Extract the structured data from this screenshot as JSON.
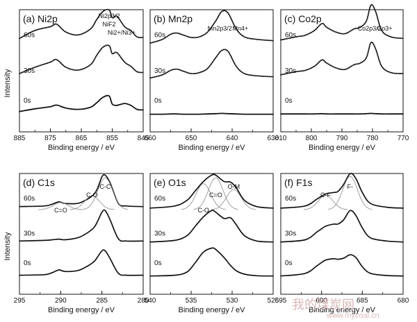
{
  "figure": {
    "ylabel": "Intensity",
    "watermark": {
      "cn": "我的煤炭网",
      "url": "www.mycoal.cn"
    }
  },
  "chart_data": [
    {
      "type": "line",
      "panel": "(a)",
      "title": "Ni2p",
      "xlabel": "Binding energy  /  eV",
      "xlim": [
        885,
        845
      ],
      "xticks": [
        885,
        875,
        865,
        855,
        845
      ],
      "x": [
        885,
        880,
        875,
        873,
        870,
        866,
        862,
        860,
        858,
        856,
        855,
        853.5,
        851,
        849,
        847,
        845
      ],
      "series": [
        {
          "name": "60s",
          "values": [
            0.25,
            0.5,
            0.62,
            0.7,
            0.45,
            0.36,
            0.55,
            0.85,
            1.1,
            1.15,
            0.9,
            0.95,
            0.62,
            0.5,
            0.3,
            0.28
          ]
        },
        {
          "name": "30s",
          "values": [
            0.22,
            0.42,
            0.58,
            0.66,
            0.42,
            0.33,
            0.5,
            0.8,
            1.05,
            1.1,
            0.85,
            0.88,
            0.58,
            0.45,
            0.28,
            0.25
          ]
        },
        {
          "name": "0s",
          "values": [
            0.12,
            0.22,
            0.3,
            0.36,
            0.25,
            0.2,
            0.28,
            0.45,
            0.65,
            0.7,
            0.4,
            0.35,
            0.42,
            0.35,
            0.2,
            0.18
          ]
        }
      ],
      "annotations": [
        {
          "text": "Ni2p3/2",
          "x": 856
        },
        {
          "text": "NiF2",
          "x": 856
        },
        {
          "text": "Ni2+/Ni3+",
          "x": 852
        }
      ]
    },
    {
      "type": "line",
      "panel": "(b)",
      "title": "Mn2p",
      "xlabel": "Binding energy  /  eV",
      "xlim": [
        660,
        630
      ],
      "xticks": [
        660,
        650,
        640,
        630
      ],
      "x": [
        660,
        657,
        655,
        653.5,
        652,
        650,
        648,
        646,
        644,
        642.5,
        641,
        639,
        637,
        634,
        630
      ],
      "series": [
        {
          "name": "60s",
          "values": [
            0.1,
            0.22,
            0.38,
            0.42,
            0.36,
            0.28,
            0.3,
            0.45,
            0.8,
            1.1,
            1.05,
            0.55,
            0.3,
            0.22,
            0.18
          ]
        },
        {
          "name": "30s",
          "values": [
            0.08,
            0.18,
            0.32,
            0.36,
            0.3,
            0.22,
            0.25,
            0.38,
            0.72,
            0.95,
            0.92,
            0.45,
            0.22,
            0.15,
            0.12
          ]
        },
        {
          "name": "0s",
          "values": [
            0.02,
            0.02,
            0.03,
            0.03,
            0.02,
            0.02,
            0.02,
            0.03,
            0.04,
            0.05,
            0.04,
            0.03,
            0.02,
            0.02,
            0.02
          ]
        }
      ],
      "annotations": [
        {
          "text": "Mn2p3/2",
          "x": 643
        },
        {
          "text": "Mn4+",
          "x": 638
        }
      ]
    },
    {
      "type": "line",
      "panel": "(c)",
      "title": "Co2p",
      "xlabel": "Binding energy  /  eV",
      "xlim": [
        810,
        770
      ],
      "xticks": [
        810,
        800,
        790,
        780,
        770
      ],
      "x": [
        810,
        805,
        802,
        799,
        796.5,
        795,
        792,
        789,
        786,
        784,
        782,
        780.5,
        779,
        777,
        774,
        770
      ],
      "series": [
        {
          "name": "60s",
          "values": [
            0.2,
            0.3,
            0.35,
            0.5,
            0.72,
            0.6,
            0.45,
            0.4,
            0.55,
            0.6,
            0.8,
            1.3,
            1.1,
            0.5,
            0.3,
            0.25
          ]
        },
        {
          "name": "30s",
          "values": [
            0.18,
            0.28,
            0.32,
            0.45,
            0.65,
            0.55,
            0.4,
            0.35,
            0.5,
            0.55,
            0.72,
            1.2,
            1.0,
            0.45,
            0.25,
            0.22
          ]
        },
        {
          "name": "0s",
          "values": [
            0.03,
            0.03,
            0.03,
            0.03,
            0.04,
            0.03,
            0.03,
            0.03,
            0.03,
            0.03,
            0.04,
            0.05,
            0.04,
            0.03,
            0.03,
            0.03
          ]
        }
      ],
      "annotations": [
        {
          "text": "Co2p3/2",
          "x": 781
        },
        {
          "text": "Co3+",
          "x": 776
        }
      ]
    },
    {
      "type": "line",
      "panel": "(d)",
      "title": "C1s",
      "xlabel": "Binding energy  /  eV",
      "xlim": [
        295,
        280
      ],
      "xticks": [
        295,
        290,
        285,
        280
      ],
      "x": [
        295,
        292,
        291,
        290.2,
        289.5,
        288,
        287,
        286,
        285.5,
        285,
        284.6,
        284,
        283,
        282,
        280
      ],
      "series": [
        {
          "name": "60s",
          "values": [
            0.1,
            0.12,
            0.18,
            0.25,
            0.2,
            0.2,
            0.3,
            0.48,
            0.7,
            1.05,
            1.1,
            0.85,
            0.2,
            0.12,
            0.1
          ]
        },
        {
          "name": "30s",
          "values": [
            0.08,
            0.1,
            0.12,
            0.14,
            0.12,
            0.18,
            0.3,
            0.5,
            0.72,
            1.0,
            1.05,
            0.75,
            0.15,
            0.08,
            0.08
          ]
        },
        {
          "name": "0s",
          "values": [
            0.08,
            0.1,
            0.18,
            0.28,
            0.22,
            0.25,
            0.38,
            0.58,
            0.78,
            1.0,
            1.0,
            0.7,
            0.15,
            0.08,
            0.08
          ]
        }
      ],
      "annotations": [
        {
          "text": "C=O",
          "x": 290
        },
        {
          "text": "C-O",
          "x": 286.2
        },
        {
          "text": "C-C",
          "x": 284.6
        }
      ]
    },
    {
      "type": "line",
      "panel": "(e)",
      "title": "O1s",
      "xlabel": "Binding energy  /  eV",
      "xlim": [
        540,
        525
      ],
      "xticks": [
        540,
        535,
        530,
        525
      ],
      "x": [
        540,
        537,
        535.5,
        534.5,
        533.5,
        532.5,
        532,
        531,
        530.2,
        529.5,
        528.5,
        527,
        525
      ],
      "series": [
        {
          "name": "60s",
          "values": [
            0.05,
            0.12,
            0.3,
            0.6,
            0.9,
            1.1,
            1.1,
            0.9,
            0.88,
            0.7,
            0.3,
            0.1,
            0.05
          ]
        },
        {
          "name": "30s",
          "values": [
            0.05,
            0.1,
            0.25,
            0.55,
            0.85,
            1.05,
            1.0,
            0.8,
            0.82,
            0.6,
            0.25,
            0.08,
            0.05
          ]
        },
        {
          "name": "0s",
          "values": [
            0.05,
            0.08,
            0.2,
            0.55,
            0.95,
            1.1,
            1.05,
            0.75,
            0.45,
            0.25,
            0.12,
            0.06,
            0.05
          ]
        }
      ],
      "annotations": [
        {
          "text": "C-O",
          "x": 533.5
        },
        {
          "text": "C=O",
          "x": 532
        },
        {
          "text": "O-M",
          "x": 529.8
        }
      ]
    },
    {
      "type": "line",
      "panel": "(f)",
      "title": "F1s",
      "xlabel": "Binding energy  /  eV",
      "xlim": [
        695,
        680
      ],
      "xticks": [
        695,
        690,
        685,
        680
      ],
      "x": [
        695,
        692,
        690.5,
        689.5,
        688.5,
        688,
        687.3,
        686.5,
        685.8,
        685,
        684,
        682,
        680
      ],
      "series": [
        {
          "name": "60s",
          "values": [
            0.05,
            0.12,
            0.35,
            0.5,
            0.55,
            0.58,
            0.8,
            1.15,
            1.0,
            0.55,
            0.2,
            0.08,
            0.05
          ]
        },
        {
          "name": "30s",
          "values": [
            0.05,
            0.12,
            0.38,
            0.55,
            0.62,
            0.62,
            0.75,
            1.05,
            0.9,
            0.5,
            0.18,
            0.08,
            0.05
          ]
        },
        {
          "name": "0s",
          "values": [
            0.05,
            0.15,
            0.45,
            0.65,
            0.7,
            0.68,
            0.72,
            0.85,
            0.75,
            0.4,
            0.15,
            0.07,
            0.05
          ]
        }
      ],
      "annotations": [
        {
          "text": "C-F",
          "x": 689.5
        },
        {
          "text": "F-",
          "x": 686.5
        }
      ]
    }
  ]
}
